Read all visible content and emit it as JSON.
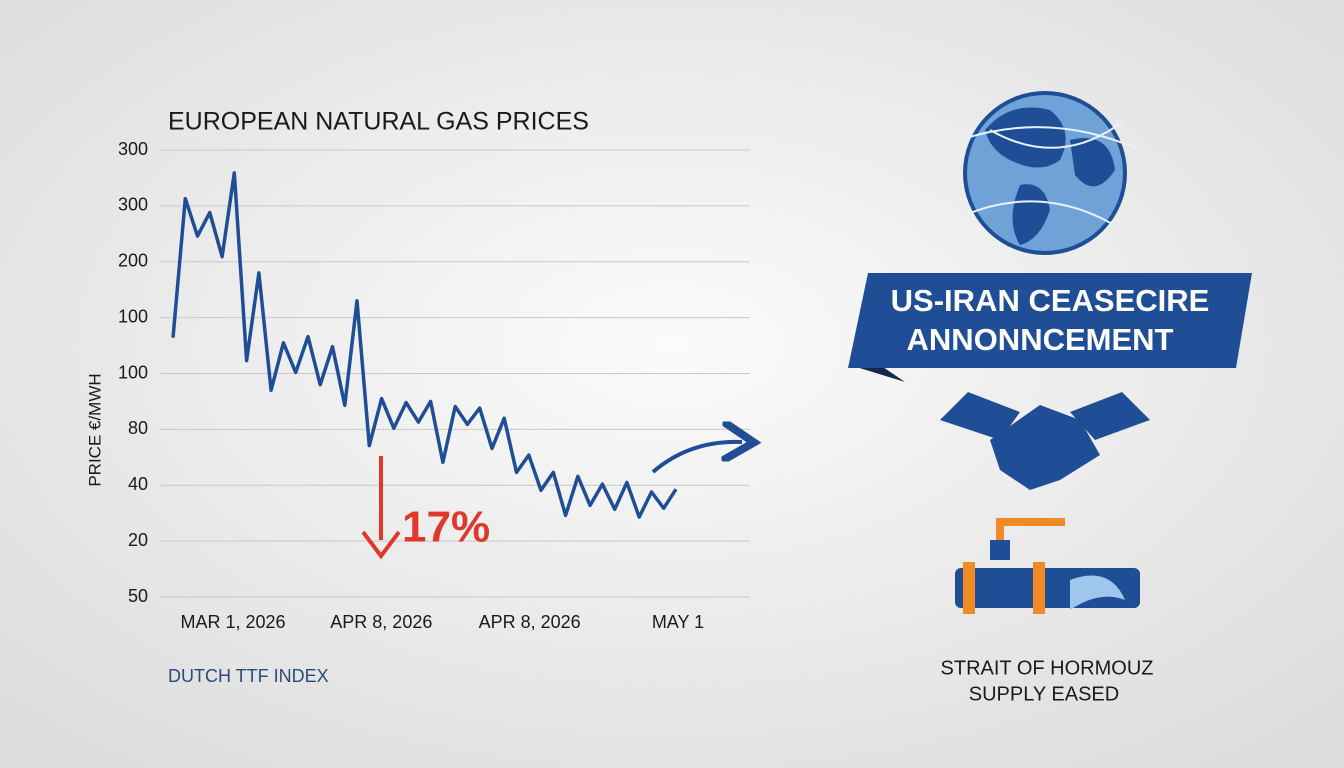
{
  "chart_data": {
    "type": "line",
    "title": "EUROPEAN NATURAL GAS PRICES",
    "y_label": "PRICE €/MWH",
    "source": "DUTCH TTF INDEX",
    "annotation": "17%",
    "x_labels": [
      "MAR 1, 2026",
      "APR 8, 2026",
      "APR 8, 2026",
      "MAY 1"
    ],
    "ylim": [
      0,
      8
    ],
    "yticks": [
      {
        "value": 8,
        "label": "300"
      },
      {
        "value": 7,
        "label": "300"
      },
      {
        "value": 6,
        "label": "200"
      },
      {
        "value": 5,
        "label": "100"
      },
      {
        "value": 4,
        "label": "100"
      },
      {
        "value": 3,
        "label": "80"
      },
      {
        "value": 2,
        "label": "40"
      },
      {
        "value": 1,
        "label": "20"
      },
      {
        "value": 0,
        "label": "50"
      }
    ],
    "grid": true,
    "series": [
      {
        "name": "Dutch TTF",
        "color": "#1f4e96",
        "values": [
          4.64,
          7.13,
          6.46,
          6.88,
          6.09,
          7.59,
          4.23,
          5.8,
          3.7,
          4.55,
          4.02,
          4.66,
          3.8,
          4.48,
          3.43,
          5.3,
          2.71,
          3.55,
          3.02,
          3.48,
          3.13,
          3.5,
          2.41,
          3.41,
          3.09,
          3.38,
          2.66,
          3.2,
          2.23,
          2.54,
          1.91,
          2.23,
          1.46,
          2.16,
          1.64,
          2.02,
          1.57,
          2.05,
          1.43,
          1.88,
          1.59,
          1.93
        ]
      }
    ]
  },
  "side_panel": {
    "banner": [
      "US-IRAN CEASECIRE",
      "ANNONNCEMENT"
    ],
    "caption": [
      "STRAIT OF HORMOUZ",
      "SUPPLY EASED"
    ]
  }
}
